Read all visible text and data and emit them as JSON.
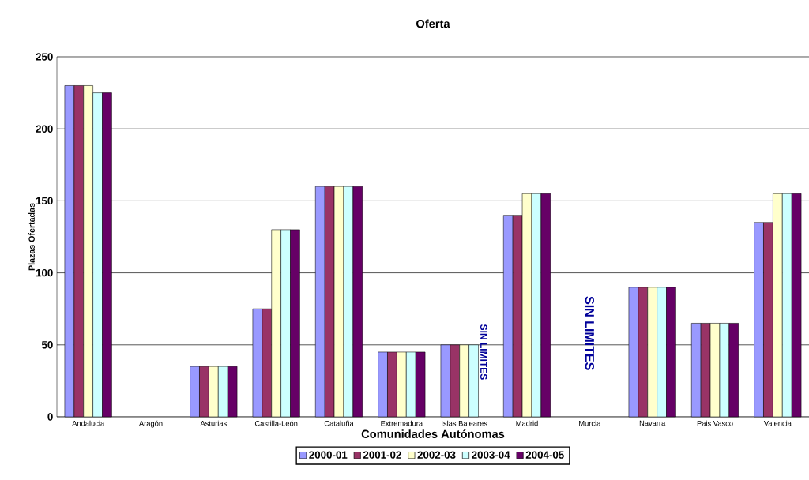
{
  "chart_data": {
    "type": "bar",
    "title": "Oferta",
    "xlabel": "Comunidades Autónomas",
    "ylabel": "Plazas Ofertadas",
    "categories": [
      "Andalucia",
      "Aragón",
      "Asturias",
      "Castilla-León",
      "Cataluña",
      "Extremadura",
      "Islas Baleares",
      "Madrid",
      "Murcia",
      "Navarra",
      "Pais Vasco",
      "Valencia"
    ],
    "series": [
      {
        "name": "2000-01",
        "color": "#9999ff",
        "values": [
          230,
          null,
          35,
          75,
          160,
          45,
          50,
          140,
          null,
          90,
          65,
          135
        ]
      },
      {
        "name": "2001-02",
        "color": "#993366",
        "values": [
          230,
          null,
          35,
          75,
          160,
          45,
          50,
          140,
          null,
          90,
          65,
          135
        ]
      },
      {
        "name": "2002-03",
        "color": "#ffffcc",
        "values": [
          230,
          null,
          35,
          130,
          160,
          45,
          50,
          155,
          null,
          90,
          65,
          155
        ]
      },
      {
        "name": "2003-04",
        "color": "#ccffff",
        "values": [
          225,
          null,
          35,
          130,
          160,
          45,
          50,
          155,
          null,
          90,
          65,
          155
        ]
      },
      {
        "name": "2004-05",
        "color": "#660066",
        "values": [
          225,
          null,
          35,
          130,
          160,
          45,
          null,
          155,
          null,
          90,
          65,
          155
        ]
      }
    ],
    "ylim": [
      0,
      250
    ],
    "yticks": [
      0,
      50,
      100,
      150,
      200,
      250
    ],
    "grid": "y",
    "legend": "bottom",
    "annotations": [
      "SIN LIMITES",
      "SIN LIMITES"
    ]
  }
}
